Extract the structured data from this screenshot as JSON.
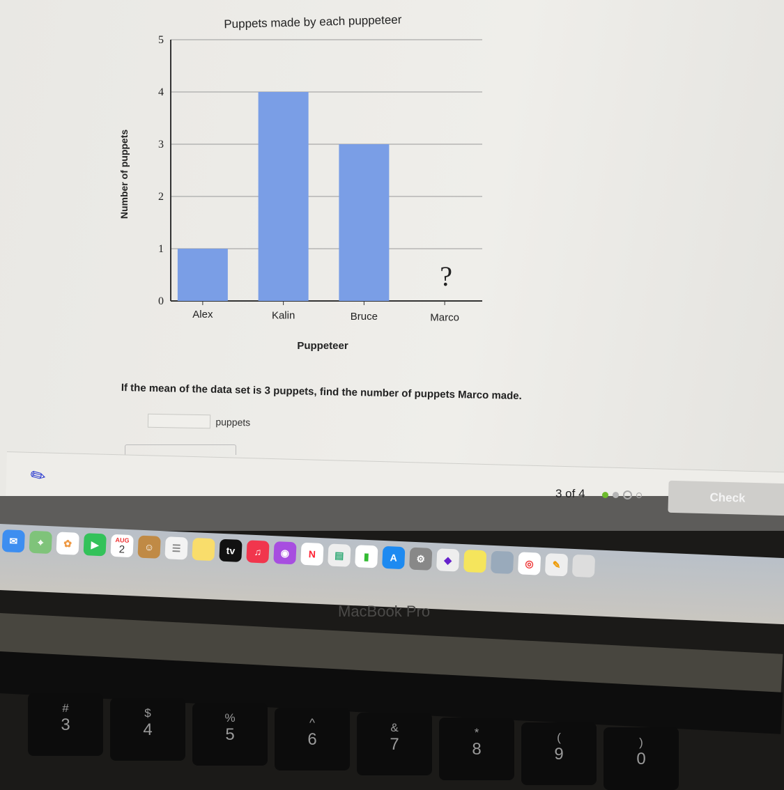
{
  "chart_data": {
    "type": "bar",
    "title": "Puppets made by each puppeteer",
    "xlabel": "Puppeteer",
    "ylabel": "Number of puppets",
    "categories": [
      "Alex",
      "Kalin",
      "Bruce",
      "Marco"
    ],
    "values": [
      1,
      4,
      3,
      null
    ],
    "unknown_marker": "?",
    "ylim": [
      0,
      5
    ],
    "yticks": [
      "0",
      "1",
      "2",
      "3",
      "4",
      "5"
    ],
    "grid": true,
    "bar_color": "#7a9ee6"
  },
  "question": {
    "text": "If the mean of the data set is 3 puppets, find the number of puppets Marco made.",
    "answer_value": "",
    "unit": "puppets"
  },
  "footer": {
    "progress": "3 of 4",
    "check_label": "Check",
    "dot_colors": [
      "#6dbb2c",
      "#b5b5b5",
      "#b5b5b5",
      "#b5b5b5"
    ]
  },
  "dock": {
    "calendar_month": "AUG",
    "calendar_day": "2",
    "tv_label": "tv"
  },
  "bezel": {
    "label": "MacBook Pro"
  },
  "keyboard": [
    {
      "top": "#",
      "bottom": "3"
    },
    {
      "top": "$",
      "bottom": "4"
    },
    {
      "top": "%",
      "bottom": "5"
    },
    {
      "top": "^",
      "bottom": "6"
    },
    {
      "top": "&",
      "bottom": "7"
    },
    {
      "top": "*",
      "bottom": "8"
    },
    {
      "top": "(",
      "bottom": "9"
    },
    {
      "top": ")",
      "bottom": "0"
    }
  ]
}
